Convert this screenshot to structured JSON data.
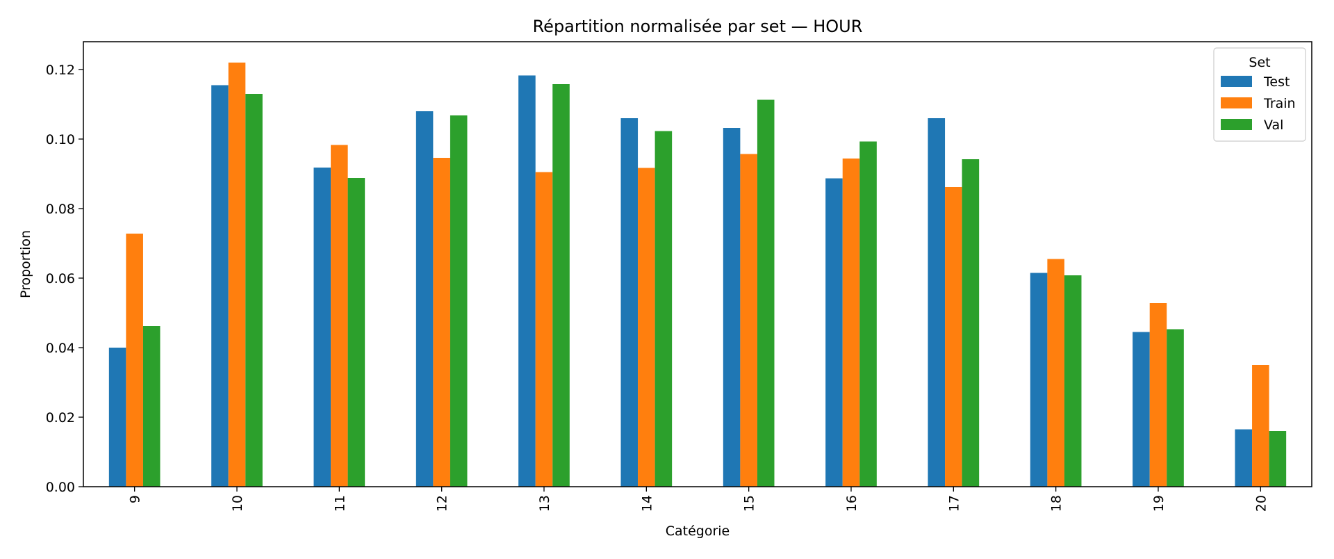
{
  "chart_data": {
    "type": "bar",
    "title": "Répartition normalisée par set — HOUR",
    "xlabel": "Catégorie",
    "ylabel": "Proportion",
    "categories": [
      "9",
      "10",
      "11",
      "12",
      "13",
      "14",
      "15",
      "16",
      "17",
      "18",
      "19",
      "20"
    ],
    "series": [
      {
        "name": "Test",
        "color": "#1f77b4",
        "values": [
          0.04,
          0.1155,
          0.0918,
          0.108,
          0.1183,
          0.106,
          0.1032,
          0.0887,
          0.106,
          0.0615,
          0.0445,
          0.0165
        ]
      },
      {
        "name": "Train",
        "color": "#ff7f0e",
        "values": [
          0.0728,
          0.122,
          0.0983,
          0.0946,
          0.0905,
          0.0917,
          0.0957,
          0.0944,
          0.0862,
          0.0655,
          0.0528,
          0.035
        ]
      },
      {
        "name": "Val",
        "color": "#2ca02c",
        "values": [
          0.0462,
          0.113,
          0.0888,
          0.1068,
          0.1158,
          0.1023,
          0.1113,
          0.0993,
          0.0942,
          0.0608,
          0.0453,
          0.016
        ]
      }
    ],
    "ylim": [
      0,
      0.128
    ],
    "yticks": [
      "0.00",
      "0.02",
      "0.04",
      "0.06",
      "0.08",
      "0.10",
      "0.12"
    ],
    "grid": false,
    "legend": {
      "title": "Set",
      "position": "top-right"
    }
  }
}
